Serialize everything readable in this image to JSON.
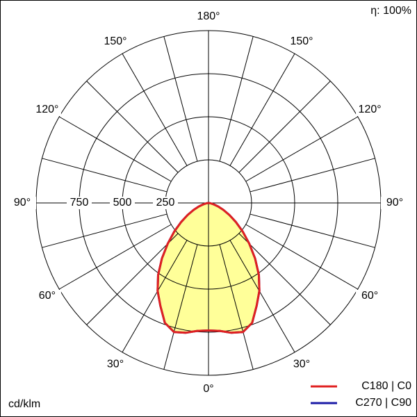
{
  "chart_data": {
    "type": "polar",
    "unit": "cd/klm",
    "efficiency": "η: 100%",
    "rlim": [
      0,
      1000
    ],
    "rticks": [
      250,
      500,
      750
    ],
    "angle_grid": [
      0,
      15,
      30,
      45,
      60,
      75,
      90,
      105,
      120,
      135,
      150,
      165,
      180
    ],
    "angleticks": [
      {
        "value": 0,
        "label": "0°"
      },
      {
        "value": 30,
        "label": "30°"
      },
      {
        "value": 60,
        "label": "60°"
      },
      {
        "value": 90,
        "label": "90°"
      },
      {
        "value": 120,
        "label": "120°"
      },
      {
        "value": 150,
        "label": "150°"
      },
      {
        "value": 180,
        "label": "180°"
      }
    ],
    "angles": [
      0,
      5,
      10,
      15,
      20,
      25,
      30,
      35,
      40,
      45,
      50,
      55,
      60,
      65,
      70,
      75,
      80,
      85,
      90
    ],
    "fill": "#ffff99",
    "series": [
      {
        "name": "C270 | C90",
        "color": "#1a1aa6",
        "values": [
          740,
          745,
          765,
          775,
          740,
          660,
          590,
          510,
          420,
          335,
          260,
          195,
          140,
          95,
          60,
          30,
          12,
          3,
          0
        ]
      },
      {
        "name": "C180 | C0",
        "color": "#e02020",
        "values": [
          740,
          745,
          765,
          775,
          740,
          660,
          590,
          510,
          420,
          335,
          260,
          195,
          140,
          95,
          60,
          30,
          12,
          3,
          0
        ]
      }
    ]
  }
}
